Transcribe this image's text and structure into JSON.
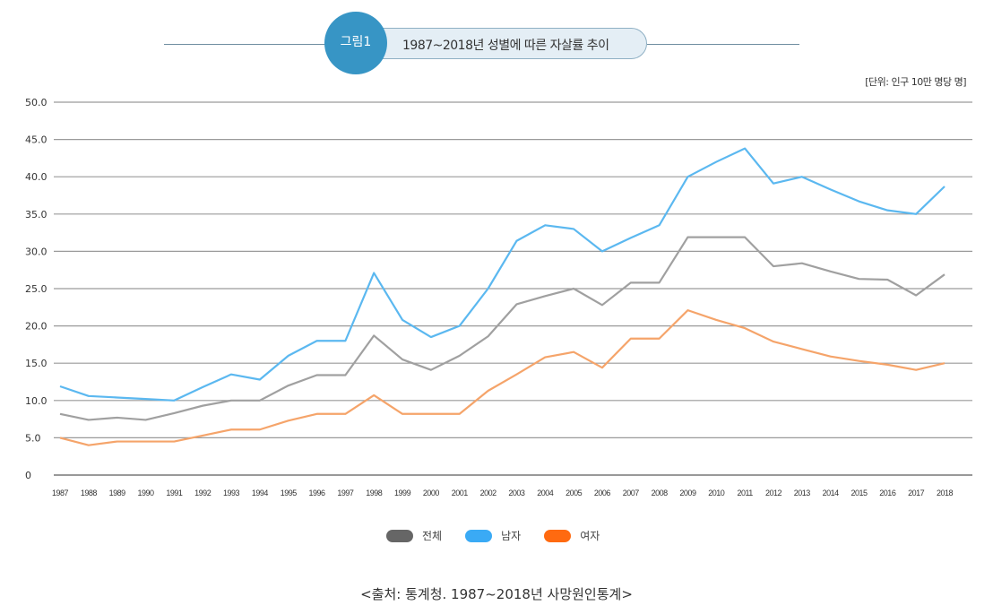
{
  "figure": {
    "badge": "그림1",
    "title": "1987~2018년 성별에 따른 자살률 추이"
  },
  "unit": "[단위: 인구 10만 명당 명]",
  "source": "<출처: 통계청. 1987~2018년 사망원인통계>",
  "chart_data": {
    "type": "line",
    "ylim": [
      0,
      50
    ],
    "yticks": [
      "0",
      "5.0",
      "10.0",
      "15.0",
      "20.0",
      "25.0",
      "30.0",
      "35.0",
      "40.0",
      "45.0",
      "50.0"
    ],
    "grid": true,
    "legend_position": "bottom",
    "categories": [
      "1987",
      "1988",
      "1989",
      "1990",
      "1991",
      "1992",
      "1993",
      "1994",
      "1995",
      "1996",
      "1997",
      "1998",
      "1999",
      "2000",
      "2001",
      "2002",
      "2003",
      "2004",
      "2005",
      "2006",
      "2007",
      "2008",
      "2009",
      "2010",
      "2011",
      "2012",
      "2013",
      "2014",
      "2015",
      "2016",
      "2017",
      "2018"
    ],
    "series": [
      {
        "name": "전체",
        "color": "#a0a0a0",
        "legend_color": "#666666",
        "values": [
          8.2,
          7.4,
          7.7,
          7.4,
          8.3,
          9.3,
          10.0,
          10.0,
          12.0,
          13.4,
          13.4,
          18.7,
          15.5,
          14.1,
          16.0,
          18.6,
          22.9,
          24.0,
          25.0,
          22.8,
          25.8,
          25.8,
          31.9,
          31.9,
          31.9,
          28.0,
          28.4,
          27.3,
          26.3,
          26.2,
          24.1,
          26.9
        ]
      },
      {
        "name": "남자",
        "color": "#5bb8f0",
        "legend_color": "#3aaaf5",
        "values": [
          11.9,
          10.6,
          10.4,
          10.2,
          10.0,
          11.8,
          13.5,
          12.8,
          16.0,
          18.0,
          18.0,
          27.1,
          20.8,
          18.5,
          20.0,
          25.0,
          31.4,
          33.5,
          33.0,
          30.0,
          31.8,
          33.5,
          40.0,
          42.0,
          43.8,
          39.1,
          40.0,
          38.3,
          36.7,
          35.5,
          35.0,
          38.7
        ]
      },
      {
        "name": "여자",
        "color": "#f5a46a",
        "legend_color": "#ff6a10",
        "values": [
          5.0,
          4.0,
          4.5,
          4.5,
          4.5,
          5.3,
          6.1,
          6.1,
          7.3,
          8.2,
          8.2,
          10.7,
          8.2,
          8.2,
          8.2,
          11.3,
          13.5,
          15.8,
          16.5,
          14.4,
          18.3,
          18.3,
          22.1,
          20.8,
          19.7,
          17.9,
          16.9,
          15.9,
          15.3,
          14.8,
          14.1,
          15.0
        ]
      }
    ]
  }
}
